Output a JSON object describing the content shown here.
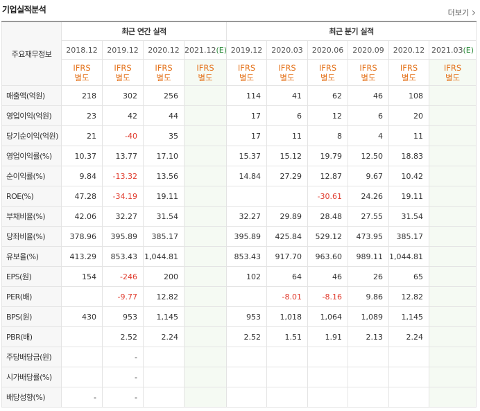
{
  "header": {
    "title": "기업실적분석",
    "more": "더보기"
  },
  "table": {
    "corner": "주요재무정보",
    "groups": [
      {
        "label": "최근 연간 실적",
        "span": 4
      },
      {
        "label": "최근 분기 실적",
        "span": 6
      }
    ],
    "periods": [
      {
        "date": "2018.12"
      },
      {
        "date": "2019.12"
      },
      {
        "date": "2020.12"
      },
      {
        "date": "2021.12",
        "note": "(E)"
      },
      {
        "date": "2019.12"
      },
      {
        "date": "2020.03"
      },
      {
        "date": "2020.06"
      },
      {
        "date": "2020.09"
      },
      {
        "date": "2020.12"
      },
      {
        "date": "2021.03",
        "note": "(E)"
      }
    ],
    "standards": [
      [
        "IFRS",
        "별도"
      ],
      [
        "IFRS",
        "별도"
      ],
      [
        "IFRS",
        "별도"
      ],
      [
        "IFRS",
        "별도"
      ],
      [
        "IFRS",
        "별도"
      ],
      [
        "IFRS",
        "별도"
      ],
      [
        "IFRS",
        "별도"
      ],
      [
        "IFRS",
        "별도"
      ],
      [
        "IFRS",
        "별도"
      ],
      [
        "IFRS",
        "별도"
      ]
    ],
    "sections": [
      [
        {
          "label": "매출액(억원)",
          "values": [
            "218",
            "302",
            "256",
            null,
            "114",
            "41",
            "62",
            "46",
            "108",
            null
          ]
        },
        {
          "label": "영업이익(억원)",
          "values": [
            "23",
            "42",
            "44",
            null,
            "17",
            "6",
            "12",
            "6",
            "20",
            null
          ]
        },
        {
          "label": "당기순이익(억원)",
          "values": [
            "21",
            "-40",
            "35",
            null,
            "17",
            "11",
            "8",
            "4",
            "11",
            null
          ]
        }
      ],
      [
        {
          "label": "영업이익률(%)",
          "values": [
            "10.37",
            "13.77",
            "17.10",
            null,
            "15.37",
            "15.12",
            "19.79",
            "12.50",
            "18.83",
            null
          ]
        },
        {
          "label": "순이익률(%)",
          "values": [
            "9.84",
            "-13.32",
            "13.56",
            null,
            "14.84",
            "27.29",
            "12.87",
            "9.67",
            "10.42",
            null
          ]
        },
        {
          "label": "ROE(%)",
          "values": [
            "47.28",
            "-34.19",
            "19.11",
            null,
            null,
            null,
            "-30.61",
            "24.26",
            "19.11",
            null
          ]
        }
      ],
      [
        {
          "label": "부채비율(%)",
          "values": [
            "42.06",
            "32.27",
            "31.54",
            null,
            "32.27",
            "29.89",
            "28.48",
            "27.55",
            "31.54",
            null
          ]
        },
        {
          "label": "당좌비율(%)",
          "values": [
            "378.96",
            "395.89",
            "385.17",
            null,
            "395.89",
            "425.84",
            "529.12",
            "473.95",
            "385.17",
            null
          ]
        },
        {
          "label": "유보율(%)",
          "values": [
            "413.29",
            "853.43",
            "1,044.81",
            null,
            "853.43",
            "917.70",
            "963.60",
            "989.11",
            "1,044.81",
            null
          ]
        }
      ],
      [
        {
          "label": "EPS(원)",
          "values": [
            "154",
            "-246",
            "200",
            null,
            "102",
            "64",
            "46",
            "26",
            "65",
            null
          ]
        },
        {
          "label": "PER(배)",
          "values": [
            null,
            "-9.77",
            "12.82",
            null,
            null,
            "-8.01",
            "-8.16",
            "9.86",
            "12.82",
            null
          ]
        },
        {
          "label": "BPS(원)",
          "values": [
            "430",
            "953",
            "1,145",
            null,
            "953",
            "1,018",
            "1,064",
            "1,089",
            "1,145",
            null
          ]
        },
        {
          "label": "PBR(배)",
          "values": [
            null,
            "2.52",
            "2.24",
            null,
            "2.52",
            "1.51",
            "1.91",
            "2.13",
            "2.24",
            null
          ]
        }
      ],
      [
        {
          "label": "주당배당금(원)",
          "values": [
            null,
            "-",
            null,
            null,
            null,
            null,
            null,
            null,
            null,
            null
          ]
        },
        {
          "label": "시가배당률(%)",
          "values": [
            null,
            "-",
            null,
            null,
            null,
            null,
            null,
            null,
            null,
            null
          ]
        },
        {
          "label": "배당성향(%)",
          "values": [
            "-",
            "-",
            null,
            null,
            null,
            null,
            null,
            null,
            null,
            null
          ]
        }
      ]
    ]
  }
}
